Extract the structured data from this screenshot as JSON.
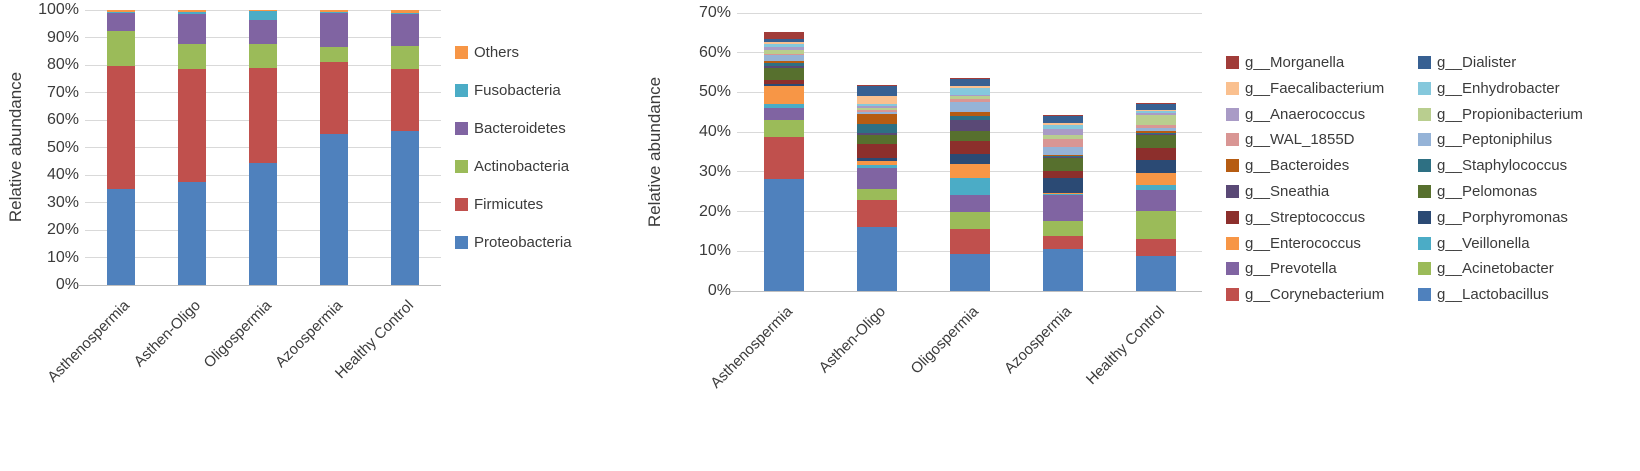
{
  "figure": {
    "background": "#ffffff",
    "grid_color": "#d9d9d9",
    "axis_color": "#bfbfbf",
    "text_color": "#3b3b3b"
  },
  "categories": [
    "Asthenospermia",
    "Asthen-Oligo",
    "Oligospermia",
    "Azoospermia",
    "Healthy Control"
  ],
  "chart_data": [
    {
      "type": "bar",
      "variant": "stacked-percent",
      "title": "",
      "xlabel": "",
      "ylabel": "Relative abundance",
      "ylim": [
        0,
        100
      ],
      "tick_step": 10,
      "tick_suffix": "%",
      "grid": true,
      "legend_position": "right",
      "categories": [
        "Asthenospermia",
        "Asthen-Oligo",
        "Oligospermia",
        "Azoospermia",
        "Healthy Control"
      ],
      "series": [
        {
          "name": "Proteobacteria",
          "color": "#4F81BD",
          "values": [
            35,
            37.5,
            44.5,
            55,
            56
          ]
        },
        {
          "name": "Firmicutes",
          "color": "#C0504D",
          "values": [
            44.5,
            41,
            34.5,
            26,
            22.5
          ]
        },
        {
          "name": "Actinobacteria",
          "color": "#9BBB59",
          "values": [
            13,
            9,
            8.5,
            5.5,
            8.5
          ]
        },
        {
          "name": "Bacteroidetes",
          "color": "#8064A2",
          "values": [
            6.5,
            11,
            9,
            12.5,
            11.5
          ]
        },
        {
          "name": "Fusobacteria",
          "color": "#4BACC6",
          "values": [
            0.3,
            0.7,
            3,
            0.2,
            0.3
          ]
        },
        {
          "name": "Others",
          "color": "#F79646",
          "values": [
            0.7,
            0.8,
            0.5,
            0.8,
            1.2
          ]
        }
      ],
      "legend_columns": [
        {
          "items": [
            "Others",
            "Fusobacteria",
            "Bacteroidetes",
            "Actinobacteria",
            "Firmicutes",
            "Proteobacteria"
          ]
        }
      ]
    },
    {
      "type": "bar",
      "variant": "stacked",
      "title": "",
      "xlabel": "",
      "ylabel": "Relative abundance",
      "ylim": [
        0,
        70
      ],
      "tick_step": 10,
      "tick_suffix": "%",
      "grid": true,
      "legend_position": "right",
      "categories": [
        "Asthenospermia",
        "Asthen-Oligo",
        "Oligospermia",
        "Azoospermia",
        "Healthy Control"
      ],
      "series": [
        {
          "name": "g__Lactobacillus",
          "color": "#4F81BD",
          "values": [
            28.3,
            16.0,
            9.3,
            10.7,
            8.9
          ]
        },
        {
          "name": "g__Corynebacterium",
          "color": "#C0504D",
          "values": [
            10.4,
            6.9,
            6.4,
            3.2,
            4.3
          ]
        },
        {
          "name": "g__Acinetobacter",
          "color": "#9BBB59",
          "values": [
            4.3,
            2.7,
            4.3,
            3.8,
            7.0
          ]
        },
        {
          "name": "g__Prevotella",
          "color": "#8064A2",
          "values": [
            3.0,
            5.4,
            4.2,
            6.4,
            5.3
          ]
        },
        {
          "name": "g__Veillonella",
          "color": "#4BACC6",
          "values": [
            1.1,
            0.8,
            4.2,
            0.4,
            1.3
          ]
        },
        {
          "name": "g__Enterococcus",
          "color": "#F79646",
          "values": [
            4.5,
            1.0,
            3.5,
            0.2,
            3.0
          ]
        },
        {
          "name": "g__Porphyromonas",
          "color": "#2B4A74",
          "values": [
            0.5,
            0.8,
            2.5,
            3.8,
            3.1
          ]
        },
        {
          "name": "g__Streptococcus",
          "color": "#8C2F2C",
          "values": [
            1.0,
            3.5,
            3.3,
            1.8,
            3.1
          ]
        },
        {
          "name": "g__Pelomonas",
          "color": "#57702E",
          "values": [
            3.0,
            2.3,
            2.5,
            3.2,
            3.4
          ]
        },
        {
          "name": "g__Sneathia",
          "color": "#5A4976",
          "values": [
            0.5,
            0.4,
            2.8,
            0.2,
            0.2
          ]
        },
        {
          "name": "g__Staphylococcus",
          "color": "#2E7083",
          "values": [
            0.8,
            2.3,
            1.1,
            0.2,
            0.2
          ]
        },
        {
          "name": "g__Bacteroides",
          "color": "#B65C12",
          "values": [
            0.5,
            2.4,
            1.0,
            0.3,
            0.5
          ]
        },
        {
          "name": "g__Peptoniphilus",
          "color": "#95B3D7",
          "values": [
            1.5,
            0.7,
            2.5,
            2.0,
            0.7
          ]
        },
        {
          "name": "g__WAL_1855D",
          "color": "#D99694",
          "values": [
            0.4,
            0.5,
            0.7,
            2.2,
            0.9
          ]
        },
        {
          "name": "g__Propionibacterium",
          "color": "#B9CE8F",
          "values": [
            1.0,
            0.5,
            0.8,
            0.8,
            2.3
          ]
        },
        {
          "name": "g__Anaerococcus",
          "color": "#A99BC6",
          "values": [
            0.6,
            0.5,
            0.3,
            1.7,
            0.5
          ]
        },
        {
          "name": "g__Enhydrobacter",
          "color": "#85C8DC",
          "values": [
            0.8,
            0.5,
            1.8,
            1.0,
            0.8
          ]
        },
        {
          "name": "g__Faecalibacterium",
          "color": "#FAC08F",
          "values": [
            0.4,
            2.0,
            0.5,
            0.3,
            0.2
          ]
        },
        {
          "name": "g__Dialister",
          "color": "#376092",
          "values": [
            0.8,
            2.4,
            1.8,
            1.8,
            1.5
          ]
        },
        {
          "name": "g__Morganella",
          "color": "#A13C39",
          "values": [
            1.8,
            0.3,
            0.2,
            0.2,
            0.1
          ]
        }
      ],
      "legend_columns": [
        {
          "items": [
            "g__Morganella",
            "g__Faecalibacterium",
            "g__Anaerococcus",
            "g__WAL_1855D",
            "g__Bacteroides",
            "g__Sneathia",
            "g__Streptococcus",
            "g__Enterococcus",
            "g__Prevotella",
            "g__Corynebacterium"
          ]
        },
        {
          "items": [
            "g__Dialister",
            "g__Enhydrobacter",
            "g__Propionibacterium",
            "g__Peptoniphilus",
            "g__Staphylococcus",
            "g__Pelomonas",
            "g__Porphyromonas",
            "g__Veillonella",
            "g__Acinetobacter",
            "g__Lactobacillus"
          ]
        }
      ]
    }
  ]
}
